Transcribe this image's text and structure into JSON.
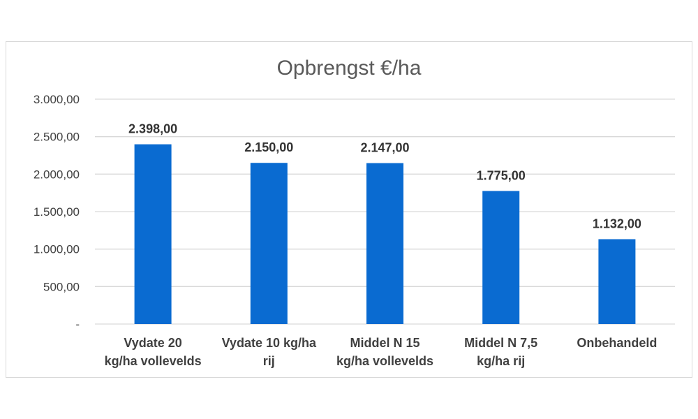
{
  "chart_data": {
    "type": "bar",
    "title": "Opbrengst €/ha",
    "xlabel": "",
    "ylabel": "",
    "categories": [
      [
        "Vydate 20",
        "kg/ha vollevelds"
      ],
      [
        "Vydate 10 kg/ha",
        "rij"
      ],
      [
        "Middel N 15",
        "kg/ha vollevelds"
      ],
      [
        "Middel N 7,5",
        "kg/ha rij"
      ],
      [
        "Onbehandeld"
      ]
    ],
    "values": [
      2398,
      2150,
      2147,
      1775,
      1132
    ],
    "data_labels": [
      "2.398,00",
      "2.150,00",
      "2.147,00",
      "1.775,00",
      "1.132,00"
    ],
    "ylim": [
      0,
      3000
    ],
    "yticks": [
      0,
      500,
      1000,
      1500,
      2000,
      2500,
      3000
    ],
    "ytick_labels": [
      "-",
      "500,00",
      "1.000,00",
      "1.500,00",
      "2.000,00",
      "2.500,00",
      "3.000,00"
    ],
    "grid": true,
    "legend": "none",
    "bar_color": "#0a6bd1"
  }
}
